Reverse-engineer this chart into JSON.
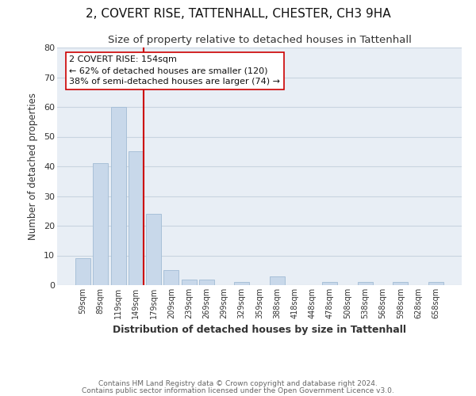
{
  "title": "2, COVERT RISE, TATTENHALL, CHESTER, CH3 9HA",
  "subtitle": "Size of property relative to detached houses in Tattenhall",
  "xlabel": "Distribution of detached houses by size in Tattenhall",
  "ylabel": "Number of detached properties",
  "bar_labels": [
    "59sqm",
    "89sqm",
    "119sqm",
    "149sqm",
    "179sqm",
    "209sqm",
    "239sqm",
    "269sqm",
    "299sqm",
    "329sqm",
    "359sqm",
    "388sqm",
    "418sqm",
    "448sqm",
    "478sqm",
    "508sqm",
    "538sqm",
    "568sqm",
    "598sqm",
    "628sqm",
    "658sqm"
  ],
  "bar_values": [
    9,
    41,
    60,
    45,
    24,
    5,
    2,
    2,
    0,
    1,
    0,
    3,
    0,
    0,
    1,
    0,
    1,
    0,
    1,
    0,
    1
  ],
  "bar_color": "#c8d8ea",
  "bar_edge_color": "#a8c0d8",
  "property_line_color": "#cc0000",
  "ylim": [
    0,
    80
  ],
  "yticks": [
    0,
    10,
    20,
    30,
    40,
    50,
    60,
    70,
    80
  ],
  "annotation_title": "2 COVERT RISE: 154sqm",
  "annotation_line1": "← 62% of detached houses are smaller (120)",
  "annotation_line2": "38% of semi-detached houses are larger (74) →",
  "annotation_box_color": "#ffffff",
  "annotation_box_edge": "#cc0000",
  "footer_line1": "Contains HM Land Registry data © Crown copyright and database right 2024.",
  "footer_line2": "Contains public sector information licensed under the Open Government Licence v3.0.",
  "bg_color": "#ffffff",
  "plot_bg_color": "#e8eef5",
  "grid_color": "#c8d4e0",
  "title_fontsize": 11,
  "subtitle_fontsize": 9.5
}
